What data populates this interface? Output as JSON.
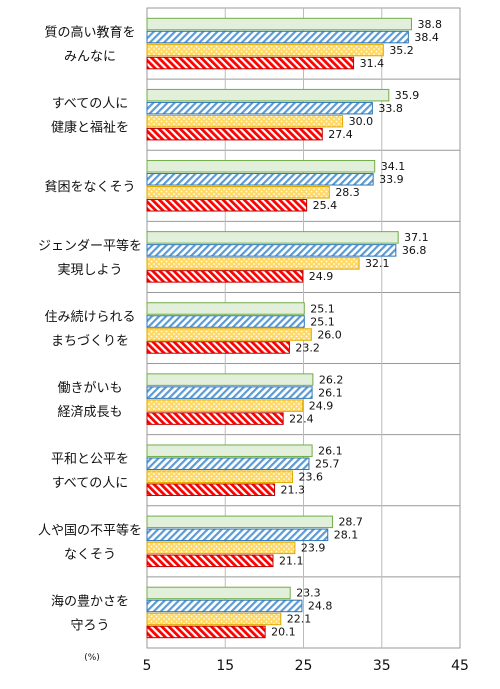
{
  "chart_data": {
    "type": "bar",
    "orientation": "horizontal",
    "xlabel": "(%)",
    "xlim": [
      5,
      45
    ],
    "xticks": [
      "5",
      "15",
      "25",
      "35",
      "45"
    ],
    "categories": [
      [
        "質の高い教育を",
        "みんなに"
      ],
      [
        "すべての人に",
        "健康と福祉を"
      ],
      [
        "貧困をなくそう"
      ],
      [
        "ジェンダー平等を",
        "実現しよう"
      ],
      [
        "住み続けられる",
        "まちづくりを"
      ],
      [
        "働きがいも",
        "経済成長も"
      ],
      [
        "平和と公平を",
        "すべての人に"
      ],
      [
        "人や国の不平等を",
        "なくそう"
      ],
      [
        "海の豊かさを",
        "守ろう"
      ]
    ],
    "series": [
      {
        "values": [
          38.8,
          35.9,
          34.1,
          37.1,
          25.1,
          26.2,
          26.1,
          28.7,
          23.3
        ],
        "labels": [
          "38.8",
          "35.9",
          "34.1",
          "37.1",
          "25.1",
          "26.2",
          "26.1",
          "28.7",
          "23.3"
        ],
        "color": "#e2efda",
        "stroke": "#70ad47",
        "pattern": "solid"
      },
      {
        "values": [
          38.4,
          33.8,
          33.9,
          36.8,
          25.1,
          26.1,
          25.7,
          28.1,
          24.8
        ],
        "labels": [
          "38.4",
          "33.8",
          "33.9",
          "36.8",
          "25.1",
          "26.1",
          "25.7",
          "28.1",
          "24.8"
        ],
        "color": "#5b9bd5",
        "stroke": "#2e75b6",
        "pattern": "diagonal"
      },
      {
        "values": [
          35.2,
          30.0,
          28.3,
          32.1,
          26.0,
          24.9,
          23.6,
          23.9,
          22.1
        ],
        "labels": [
          "35.2",
          "30.0",
          "28.3",
          "32.1",
          "26.0",
          "24.9",
          "23.6",
          "23.9",
          "22.1"
        ],
        "color": "#ffd966",
        "stroke": "#e0a800",
        "pattern": "dots"
      },
      {
        "values": [
          31.4,
          27.4,
          25.4,
          24.9,
          23.2,
          22.4,
          21.3,
          21.1,
          20.1
        ],
        "labels": [
          "31.4",
          "27.4",
          "25.4",
          "24.9",
          "23.2",
          "22.4",
          "21.3",
          "21.1",
          "20.1"
        ],
        "color": "#ff0000",
        "stroke": "#c00000",
        "pattern": "diagonal-thick"
      }
    ],
    "grid": true,
    "legend": "none"
  }
}
